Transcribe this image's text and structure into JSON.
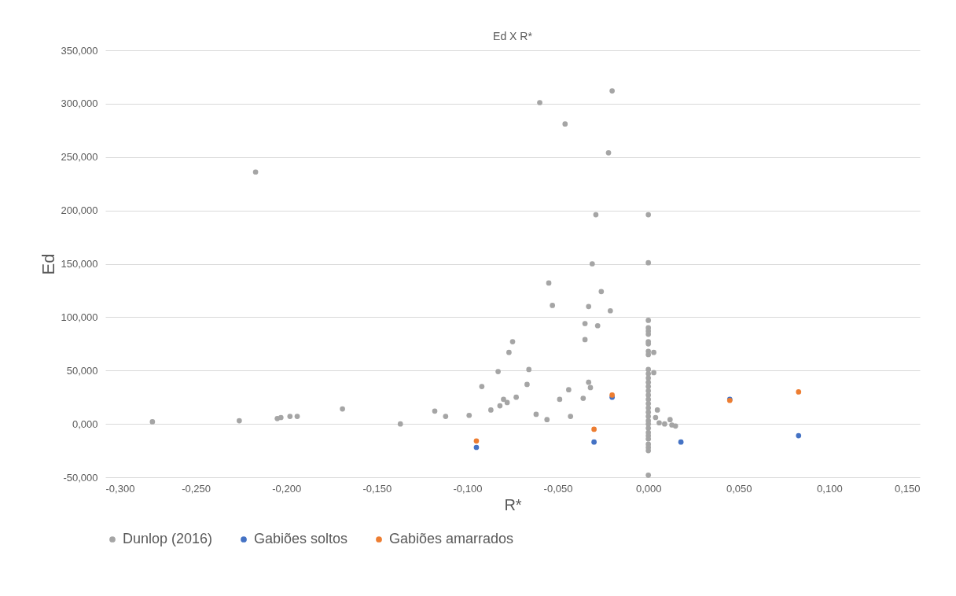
{
  "chart_data": {
    "type": "scatter",
    "title": "Ed X R*",
    "xlabel": "R*",
    "ylabel": "Ed",
    "xlim": [
      -0.3,
      0.15
    ],
    "ylim": [
      -50,
      350
    ],
    "xticks": [
      {
        "value": -0.3,
        "label": "-0,300"
      },
      {
        "value": -0.25,
        "label": "-0,250"
      },
      {
        "value": -0.2,
        "label": "-0,200"
      },
      {
        "value": -0.15,
        "label": "-0,150"
      },
      {
        "value": -0.1,
        "label": "-0,100"
      },
      {
        "value": -0.05,
        "label": "-0,050"
      },
      {
        "value": 0,
        "label": "0,000"
      },
      {
        "value": 0.05,
        "label": "0,050"
      },
      {
        "value": 0.1,
        "label": "0,100"
      },
      {
        "value": 0.15,
        "label": "0,150"
      }
    ],
    "yticks": [
      {
        "value": -50,
        "label": "-50,000"
      },
      {
        "value": 0,
        "label": "0,000"
      },
      {
        "value": 50,
        "label": "50,000"
      },
      {
        "value": 100,
        "label": "100,000"
      },
      {
        "value": 150,
        "label": "150,000"
      },
      {
        "value": 200,
        "label": "200,000"
      },
      {
        "value": 250,
        "label": "250,000"
      },
      {
        "value": 300,
        "label": "300,000"
      },
      {
        "value": 350,
        "label": "350,000"
      }
    ],
    "grid": "y",
    "legend": "bottom",
    "marker": "circle",
    "series": [
      {
        "name": "Dunlop (2016)",
        "color": "#a5a5a5",
        "x": [
          -0.274,
          -0.226,
          -0.217,
          -0.205,
          -0.203,
          -0.198,
          -0.194,
          -0.169,
          -0.137,
          -0.118,
          -0.112,
          -0.099,
          -0.092,
          -0.087,
          -0.083,
          -0.082,
          -0.08,
          -0.078,
          -0.077,
          -0.075,
          -0.073,
          -0.067,
          -0.066,
          -0.062,
          -0.06,
          -0.056,
          -0.055,
          -0.053,
          -0.049,
          -0.046,
          -0.044,
          -0.043,
          -0.036,
          -0.035,
          -0.035,
          -0.033,
          -0.033,
          -0.032,
          -0.031,
          -0.029,
          -0.028,
          -0.026,
          -0.022,
          -0.021,
          -0.02,
          0,
          0,
          0,
          0,
          0,
          0,
          0,
          0,
          0,
          0,
          0,
          0,
          0,
          0,
          0,
          0,
          0,
          0,
          0,
          0,
          0,
          0,
          0,
          0,
          0,
          0,
          0,
          0,
          0,
          0,
          0,
          0,
          0.003,
          0.003,
          0.004,
          0.005,
          0.006,
          0.009,
          0.012,
          0.013,
          0.015
        ],
        "values": [
          2,
          3,
          236,
          5,
          6,
          7,
          7,
          14,
          0,
          12,
          7,
          8,
          35,
          13,
          49,
          17,
          23,
          20,
          67,
          77,
          25,
          37,
          51,
          9,
          301,
          4,
          132,
          111,
          23,
          281,
          32,
          7,
          24,
          94,
          79,
          110,
          39,
          34,
          150,
          196,
          92,
          124,
          254,
          106,
          312,
          196,
          151,
          97,
          90,
          87,
          84,
          77,
          75,
          68,
          65,
          51,
          47,
          43,
          39,
          35,
          31,
          27,
          23,
          19,
          15,
          11,
          7,
          3,
          0,
          -4,
          -8,
          -11,
          -14,
          -19,
          -22,
          -25,
          -48,
          67,
          48,
          6,
          13,
          1,
          0,
          4,
          -1,
          -2
        ]
      },
      {
        "name": "Gabiões soltos",
        "color": "#4472c4",
        "x": [
          -0.095,
          -0.03,
          -0.02,
          0.018,
          0.045,
          0.083
        ],
        "values": [
          -22,
          -17,
          25,
          -17,
          23,
          -11
        ]
      },
      {
        "name": "Gabiões amarrados",
        "color": "#ed7d31",
        "x": [
          -0.095,
          -0.03,
          -0.02,
          0.045,
          0.083
        ],
        "values": [
          -16,
          -5,
          27,
          22,
          30
        ]
      }
    ]
  }
}
